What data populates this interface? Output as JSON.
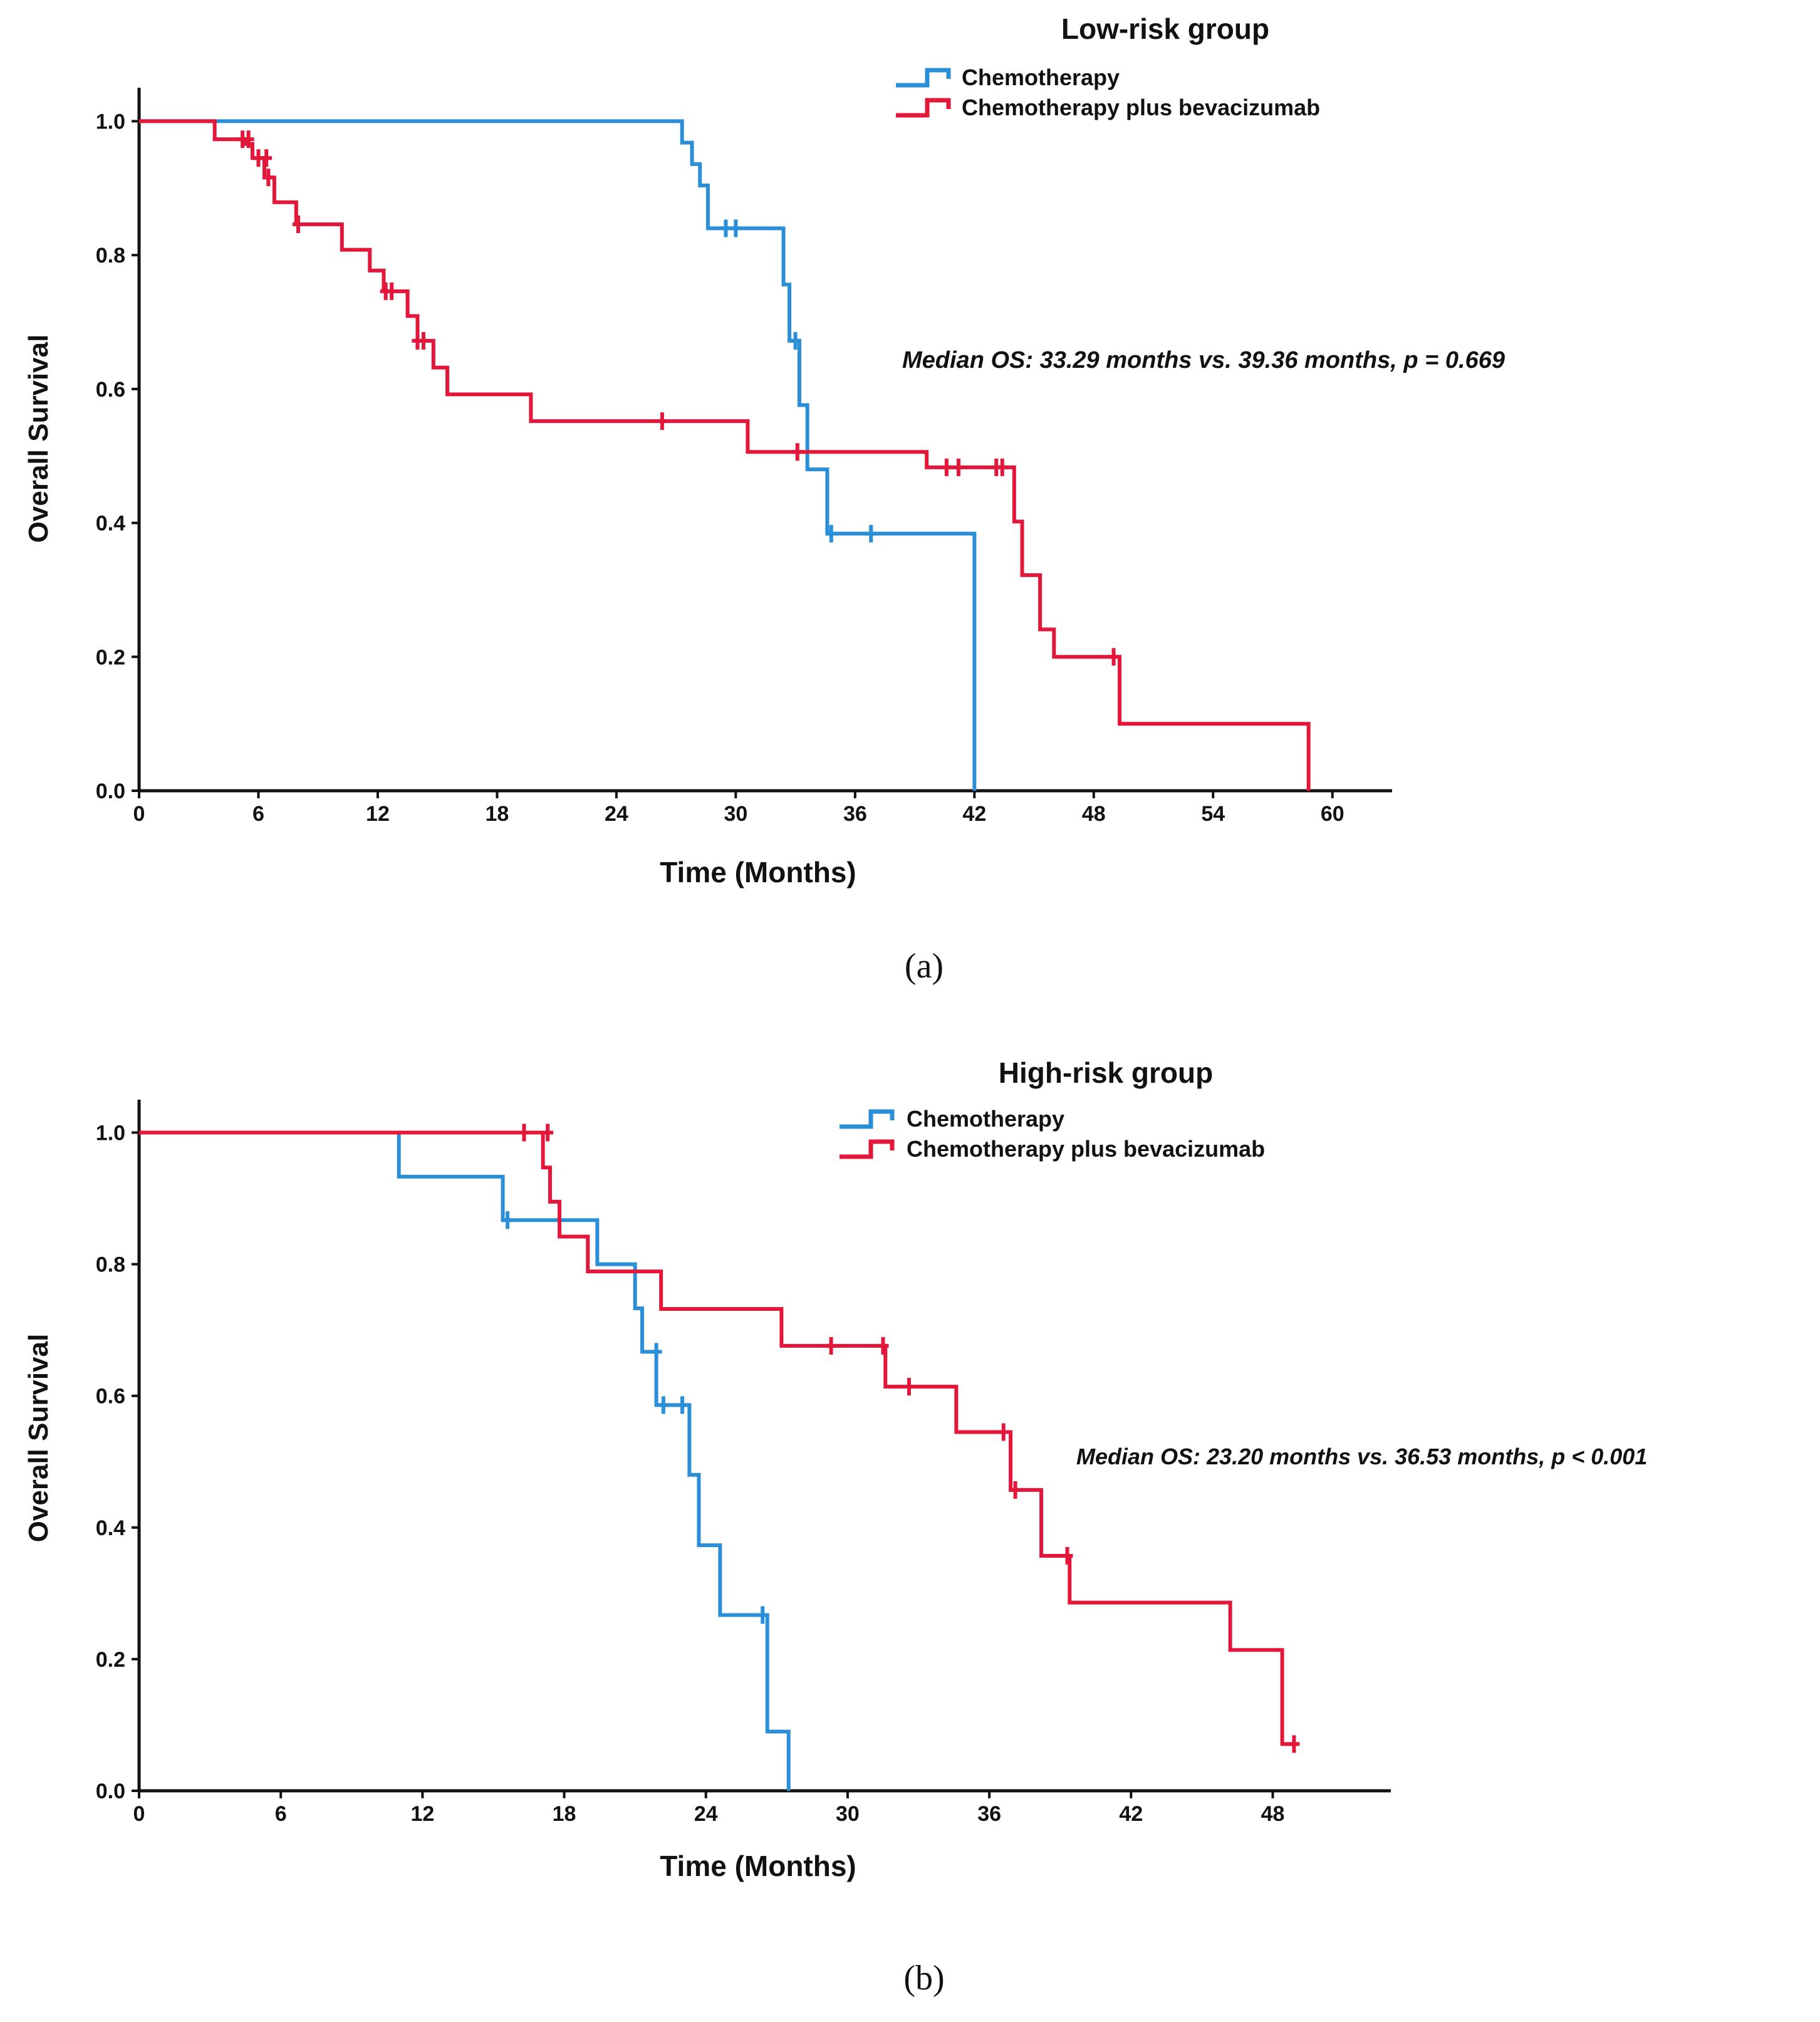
{
  "colors": {
    "chemo": "#2B8FD8",
    "bev": "#E3173A",
    "axis": "#111111",
    "text": "#111111"
  },
  "chart_data": [
    {
      "type": "line",
      "subtype": "kaplan-meier step",
      "panel_label": "(a)",
      "title": "Low-risk group",
      "xlabel": "Time (Months)",
      "ylabel": "Overall Survival",
      "xlim": [
        0,
        63
      ],
      "ylim": [
        0,
        1.05
      ],
      "xticks": [
        0,
        6,
        12,
        18,
        24,
        30,
        36,
        42,
        48,
        54,
        60
      ],
      "yticks": [
        0,
        0.2,
        0.4,
        0.6,
        0.8,
        1.0
      ],
      "ytick_labels": [
        "0.0",
        "0.2",
        "0.4",
        "0.6",
        "0.8",
        "1.0"
      ],
      "annotation": "Median OS: 33.29 months vs. 39.36 months, p = 0.669",
      "legend_position": "top-right",
      "series": [
        {
          "name": "Chemotherapy",
          "color": "#2B8FD8",
          "steps": [
            [
              0,
              1.0
            ],
            [
              27.3,
              0.968
            ],
            [
              27.8,
              0.936
            ],
            [
              28.2,
              0.904
            ],
            [
              28.6,
              0.84
            ],
            [
              32.4,
              0.756
            ],
            [
              32.7,
              0.672
            ],
            [
              33.2,
              0.576
            ],
            [
              33.6,
              0.48
            ],
            [
              34.6,
              0.384
            ],
            [
              42.0,
              0.0
            ]
          ],
          "end_x": 42.0,
          "censored": [
            [
              29.5,
              0.84
            ],
            [
              30.0,
              0.84
            ],
            [
              33.0,
              0.672
            ],
            [
              34.8,
              0.384
            ],
            [
              36.8,
              0.384
            ]
          ]
        },
        {
          "name": "Chemotherapy plus bevacizumab",
          "color": "#E3173A",
          "steps": [
            [
              0,
              1.0
            ],
            [
              3.8,
              0.973
            ],
            [
              5.3,
              0.966
            ],
            [
              5.7,
              0.945
            ],
            [
              6.3,
              0.916
            ],
            [
              6.8,
              0.879
            ],
            [
              7.9,
              0.846
            ],
            [
              10.2,
              0.808
            ],
            [
              11.6,
              0.777
            ],
            [
              12.3,
              0.746
            ],
            [
              13.5,
              0.709
            ],
            [
              14.0,
              0.672
            ],
            [
              14.8,
              0.632
            ],
            [
              15.5,
              0.592
            ],
            [
              19.7,
              0.552
            ],
            [
              30.6,
              0.506
            ],
            [
              39.6,
              0.483
            ],
            [
              44.0,
              0.402
            ],
            [
              44.4,
              0.322
            ],
            [
              45.3,
              0.241
            ],
            [
              46.0,
              0.2
            ],
            [
              49.3,
              0.1
            ],
            [
              58.8,
              0.0
            ]
          ],
          "end_x": 58.8,
          "censored": [
            [
              5.2,
              0.973
            ],
            [
              5.5,
              0.973
            ],
            [
              6.0,
              0.945
            ],
            [
              6.4,
              0.945
            ],
            [
              6.5,
              0.916
            ],
            [
              8.0,
              0.846
            ],
            [
              12.4,
              0.746
            ],
            [
              12.7,
              0.746
            ],
            [
              14.0,
              0.672
            ],
            [
              14.3,
              0.672
            ],
            [
              26.3,
              0.552
            ],
            [
              33.1,
              0.506
            ],
            [
              40.6,
              0.483
            ],
            [
              41.2,
              0.483
            ],
            [
              43.1,
              0.483
            ],
            [
              43.4,
              0.483
            ],
            [
              49.0,
              0.2
            ]
          ]
        }
      ]
    },
    {
      "type": "line",
      "subtype": "kaplan-meier step",
      "panel_label": "(b)",
      "title": "High-risk group",
      "xlabel": "Time (Months)",
      "ylabel": "Overall Survival",
      "xlim": [
        0,
        53
      ],
      "ylim": [
        0,
        1.05
      ],
      "xticks": [
        0,
        6,
        12,
        18,
        24,
        30,
        36,
        42,
        48
      ],
      "yticks": [
        0,
        0.2,
        0.4,
        0.6,
        0.8,
        1.0
      ],
      "ytick_labels": [
        "0.0",
        "0.2",
        "0.4",
        "0.6",
        "0.8",
        "1.0"
      ],
      "annotation": "Median OS: 23.20 months vs. 36.53 months, p < 0.001",
      "legend_position": "top-right",
      "series": [
        {
          "name": "Chemotherapy",
          "color": "#2B8FD8",
          "steps": [
            [
              0,
              1.0
            ],
            [
              11.0,
              0.933
            ],
            [
              15.4,
              0.867
            ],
            [
              19.4,
              0.8
            ],
            [
              21.0,
              0.733
            ],
            [
              21.3,
              0.667
            ],
            [
              21.9,
              0.586
            ],
            [
              23.3,
              0.48
            ],
            [
              23.7,
              0.373
            ],
            [
              24.6,
              0.267
            ],
            [
              26.6,
              0.09
            ],
            [
              27.5,
              0.0
            ]
          ],
          "end_x": 27.5,
          "censored": [
            [
              15.6,
              0.867
            ],
            [
              21.9,
              0.667
            ],
            [
              22.2,
              0.586
            ],
            [
              23.0,
              0.586
            ],
            [
              26.4,
              0.267
            ]
          ]
        },
        {
          "name": "Chemotherapy plus bevacizumab",
          "color": "#E3173A",
          "steps": [
            [
              0,
              1.0
            ],
            [
              17.1,
              0.947
            ],
            [
              17.4,
              0.895
            ],
            [
              17.8,
              0.842
            ],
            [
              19.0,
              0.789
            ],
            [
              22.1,
              0.732
            ],
            [
              27.2,
              0.676
            ],
            [
              31.6,
              0.614
            ],
            [
              34.6,
              0.545
            ],
            [
              36.9,
              0.457
            ],
            [
              38.2,
              0.357
            ],
            [
              39.4,
              0.286
            ],
            [
              46.2,
              0.214
            ],
            [
              48.4,
              0.071
            ]
          ],
          "end_x": 49.0,
          "censored": [
            [
              16.3,
              1.0
            ],
            [
              17.3,
              1.0
            ],
            [
              29.3,
              0.676
            ],
            [
              31.5,
              0.676
            ],
            [
              32.6,
              0.614
            ],
            [
              36.6,
              0.545
            ],
            [
              37.1,
              0.457
            ],
            [
              39.3,
              0.357
            ],
            [
              48.9,
              0.071
            ]
          ]
        }
      ]
    }
  ]
}
